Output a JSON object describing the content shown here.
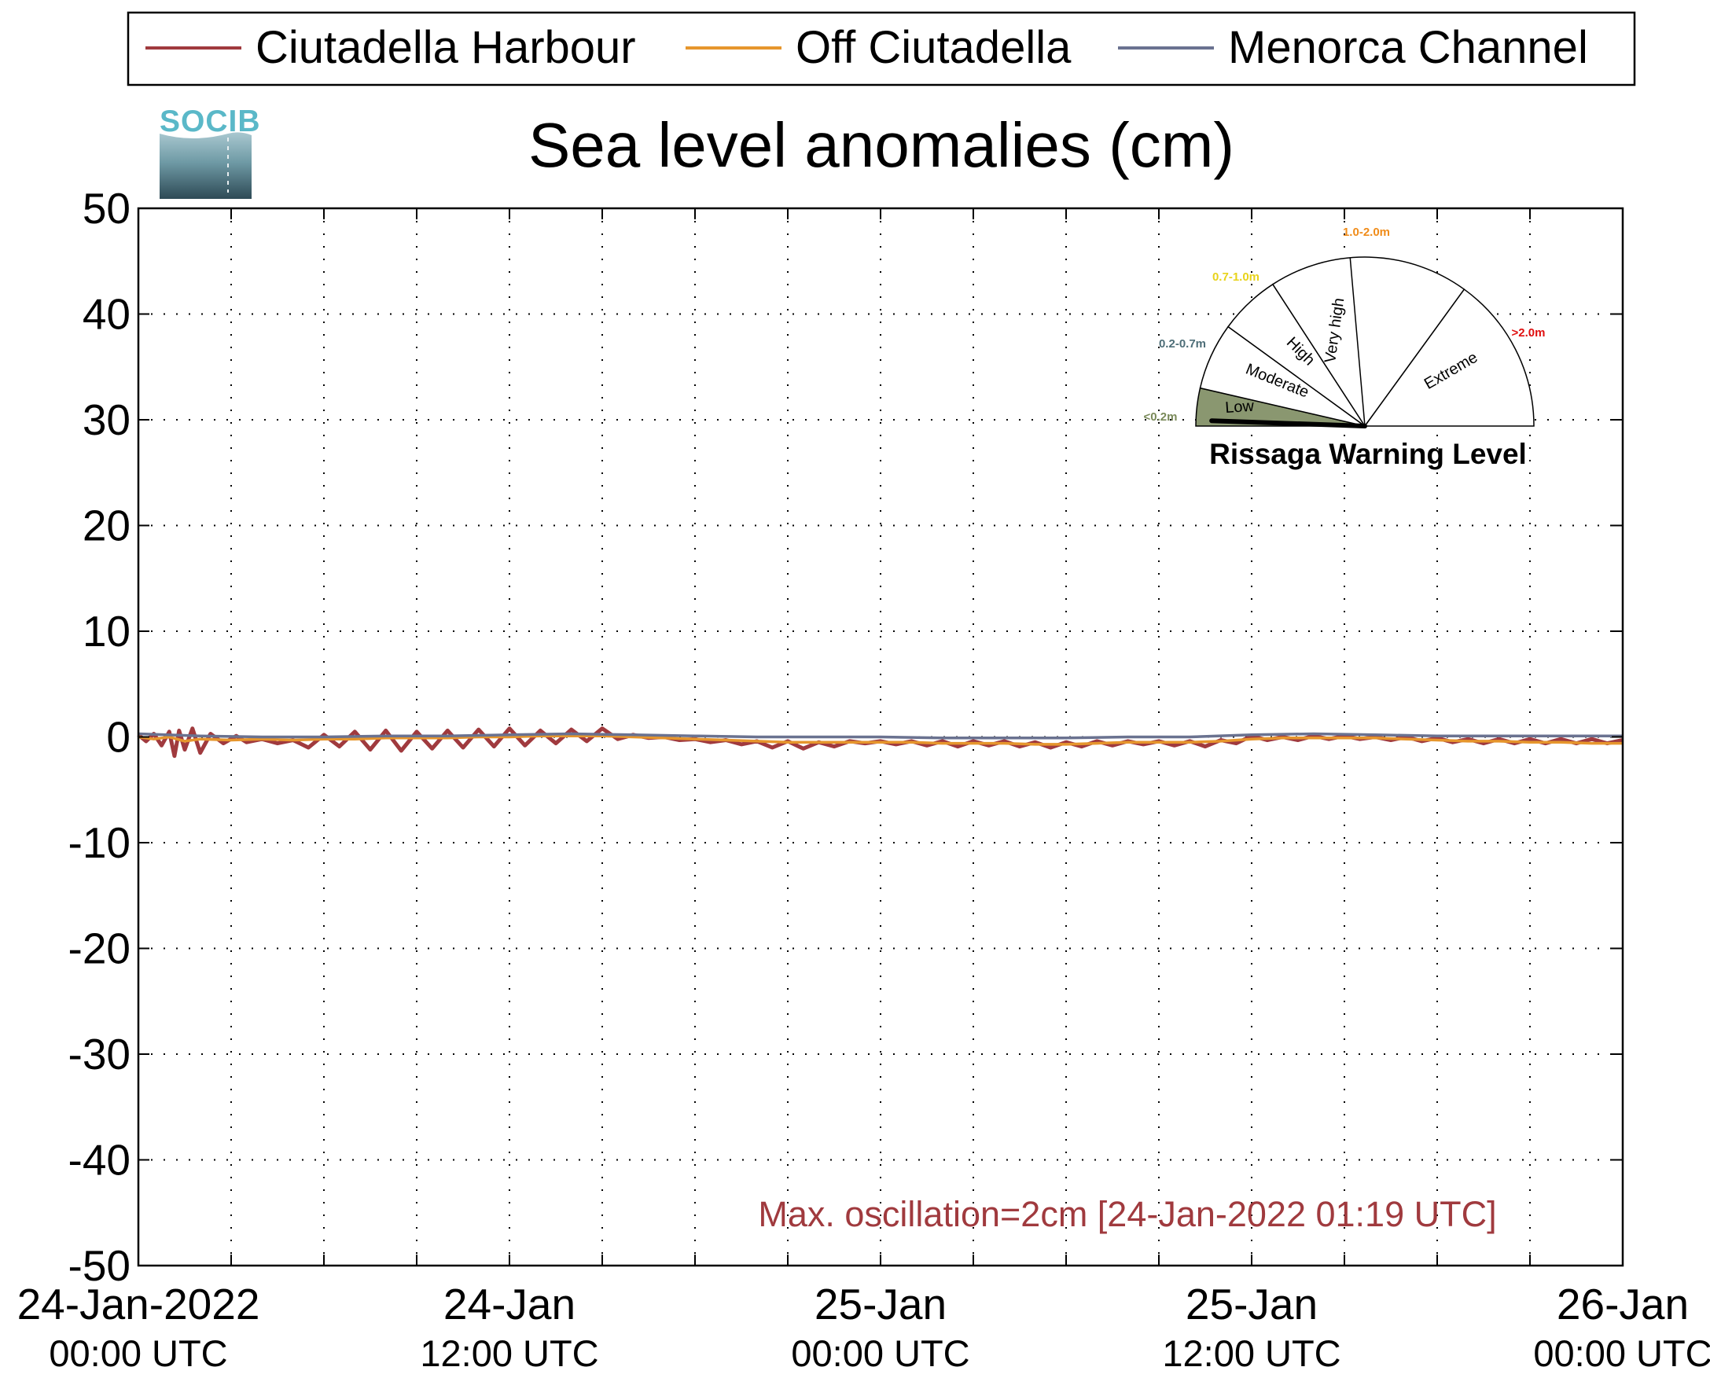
{
  "chart_data": {
    "type": "line",
    "title": "Sea level anomalies (cm)",
    "ylabel": "",
    "xlabel": "",
    "ylim": [
      -50,
      50
    ],
    "yticks": [
      50,
      40,
      30,
      20,
      10,
      0,
      -10,
      -20,
      -30,
      -40,
      -50
    ],
    "xlim": [
      "2022-01-24T00:00Z",
      "2022-01-26T00:00Z"
    ],
    "xtick_labels": [
      {
        "date": "2022-01-24T00:00Z",
        "line1": "24-Jan-2022",
        "line2": "00:00 UTC"
      },
      {
        "date": "2022-01-24T12:00Z",
        "line1": "24-Jan",
        "line2": "12:00 UTC"
      },
      {
        "date": "2022-01-25T00:00Z",
        "line1": "25-Jan",
        "line2": "00:00 UTC"
      },
      {
        "date": "2022-01-25T12:00Z",
        "line1": "25-Jan",
        "line2": "12:00 UTC"
      },
      {
        "date": "2022-01-26T00:00Z",
        "line1": "26-Jan",
        "line2": "00:00 UTC"
      }
    ],
    "grid": true,
    "legend_position": "top",
    "series": [
      {
        "name": "Ciutadella Harbour",
        "color": "#a03a3e",
        "points": [
          [
            "2022-01-24T00:00Z",
            0.2
          ],
          [
            "2022-01-24T00:15Z",
            -0.4
          ],
          [
            "2022-01-24T00:30Z",
            0.3
          ],
          [
            "2022-01-24T00:45Z",
            -0.8
          ],
          [
            "2022-01-24T01:00Z",
            0.5
          ],
          [
            "2022-01-24T01:10Z",
            -1.8
          ],
          [
            "2022-01-24T01:19Z",
            0.6
          ],
          [
            "2022-01-24T01:30Z",
            -1.2
          ],
          [
            "2022-01-24T01:45Z",
            0.8
          ],
          [
            "2022-01-24T02:00Z",
            -1.5
          ],
          [
            "2022-01-24T02:20Z",
            0.3
          ],
          [
            "2022-01-24T02:45Z",
            -0.6
          ],
          [
            "2022-01-24T03:10Z",
            0.1
          ],
          [
            "2022-01-24T03:30Z",
            -0.5
          ],
          [
            "2022-01-24T04:00Z",
            -0.2
          ],
          [
            "2022-01-24T04:30Z",
            -0.6
          ],
          [
            "2022-01-24T05:00Z",
            -0.3
          ],
          [
            "2022-01-24T05:30Z",
            -1.0
          ],
          [
            "2022-01-24T06:00Z",
            0.2
          ],
          [
            "2022-01-24T06:30Z",
            -0.9
          ],
          [
            "2022-01-24T07:00Z",
            0.5
          ],
          [
            "2022-01-24T07:30Z",
            -1.2
          ],
          [
            "2022-01-24T08:00Z",
            0.6
          ],
          [
            "2022-01-24T08:30Z",
            -1.3
          ],
          [
            "2022-01-24T09:00Z",
            0.5
          ],
          [
            "2022-01-24T09:30Z",
            -1.1
          ],
          [
            "2022-01-24T10:00Z",
            0.6
          ],
          [
            "2022-01-24T10:30Z",
            -1.0
          ],
          [
            "2022-01-24T11:00Z",
            0.7
          ],
          [
            "2022-01-24T11:30Z",
            -0.9
          ],
          [
            "2022-01-24T12:00Z",
            0.8
          ],
          [
            "2022-01-24T12:30Z",
            -0.8
          ],
          [
            "2022-01-24T13:00Z",
            0.6
          ],
          [
            "2022-01-24T13:30Z",
            -0.6
          ],
          [
            "2022-01-24T14:00Z",
            0.7
          ],
          [
            "2022-01-24T14:30Z",
            -0.4
          ],
          [
            "2022-01-24T15:00Z",
            0.8
          ],
          [
            "2022-01-24T15:30Z",
            -0.2
          ],
          [
            "2022-01-24T16:00Z",
            0.2
          ],
          [
            "2022-01-24T16:30Z",
            -0.1
          ],
          [
            "2022-01-24T17:00Z",
            0.0
          ],
          [
            "2022-01-24T17:30Z",
            -0.3
          ],
          [
            "2022-01-24T18:00Z",
            -0.2
          ],
          [
            "2022-01-24T18:30Z",
            -0.5
          ],
          [
            "2022-01-24T19:00Z",
            -0.3
          ],
          [
            "2022-01-24T19:30Z",
            -0.7
          ],
          [
            "2022-01-24T20:00Z",
            -0.4
          ],
          [
            "2022-01-24T20:30Z",
            -1.0
          ],
          [
            "2022-01-24T21:00Z",
            -0.4
          ],
          [
            "2022-01-24T21:30Z",
            -1.1
          ],
          [
            "2022-01-24T22:00Z",
            -0.5
          ],
          [
            "2022-01-24T22:30Z",
            -0.9
          ],
          [
            "2022-01-24T23:00Z",
            -0.4
          ],
          [
            "2022-01-24T23:30Z",
            -0.6
          ],
          [
            "2022-01-25T00:00Z",
            -0.4
          ],
          [
            "2022-01-25T00:30Z",
            -0.7
          ],
          [
            "2022-01-25T01:00Z",
            -0.4
          ],
          [
            "2022-01-25T01:30Z",
            -0.8
          ],
          [
            "2022-01-25T02:00Z",
            -0.4
          ],
          [
            "2022-01-25T02:30Z",
            -0.9
          ],
          [
            "2022-01-25T03:00Z",
            -0.4
          ],
          [
            "2022-01-25T03:30Z",
            -0.8
          ],
          [
            "2022-01-25T04:00Z",
            -0.4
          ],
          [
            "2022-01-25T04:30Z",
            -0.9
          ],
          [
            "2022-01-25T05:00Z",
            -0.5
          ],
          [
            "2022-01-25T05:30Z",
            -1.0
          ],
          [
            "2022-01-25T06:00Z",
            -0.5
          ],
          [
            "2022-01-25T06:30Z",
            -0.9
          ],
          [
            "2022-01-25T07:00Z",
            -0.4
          ],
          [
            "2022-01-25T07:30Z",
            -0.8
          ],
          [
            "2022-01-25T08:00Z",
            -0.4
          ],
          [
            "2022-01-25T08:30Z",
            -0.7
          ],
          [
            "2022-01-25T09:00Z",
            -0.4
          ],
          [
            "2022-01-25T09:30Z",
            -0.8
          ],
          [
            "2022-01-25T10:00Z",
            -0.4
          ],
          [
            "2022-01-25T10:30Z",
            -0.9
          ],
          [
            "2022-01-25T11:00Z",
            -0.3
          ],
          [
            "2022-01-25T11:30Z",
            -0.6
          ],
          [
            "2022-01-25T12:00Z",
            0.1
          ],
          [
            "2022-01-25T12:30Z",
            -0.3
          ],
          [
            "2022-01-25T13:00Z",
            0.0
          ],
          [
            "2022-01-25T13:30Z",
            -0.3
          ],
          [
            "2022-01-25T14:00Z",
            0.1
          ],
          [
            "2022-01-25T14:30Z",
            -0.2
          ],
          [
            "2022-01-25T15:00Z",
            0.1
          ],
          [
            "2022-01-25T15:30Z",
            -0.2
          ],
          [
            "2022-01-25T16:00Z",
            0.0
          ],
          [
            "2022-01-25T16:30Z",
            -0.3
          ],
          [
            "2022-01-25T17:00Z",
            0.0
          ],
          [
            "2022-01-25T17:30Z",
            -0.4
          ],
          [
            "2022-01-25T18:00Z",
            -0.1
          ],
          [
            "2022-01-25T18:30Z",
            -0.5
          ],
          [
            "2022-01-25T19:00Z",
            -0.2
          ],
          [
            "2022-01-25T19:30Z",
            -0.6
          ],
          [
            "2022-01-25T20:00Z",
            -0.2
          ],
          [
            "2022-01-25T20:30Z",
            -0.6
          ],
          [
            "2022-01-25T21:00Z",
            -0.2
          ],
          [
            "2022-01-25T21:30Z",
            -0.6
          ],
          [
            "2022-01-25T22:00Z",
            -0.2
          ],
          [
            "2022-01-25T22:30Z",
            -0.6
          ],
          [
            "2022-01-25T23:00Z",
            -0.2
          ],
          [
            "2022-01-25T23:30Z",
            -0.6
          ],
          [
            "2022-01-26T00:00Z",
            -0.3
          ]
        ]
      },
      {
        "name": "Off Ciutadella",
        "color": "#e6962d",
        "points": [
          [
            "2022-01-24T00:00Z",
            0.0
          ],
          [
            "2022-01-24T00:30Z",
            -0.2
          ],
          [
            "2022-01-24T01:00Z",
            0.0
          ],
          [
            "2022-01-24T01:30Z",
            -0.4
          ],
          [
            "2022-01-24T02:00Z",
            -0.2
          ],
          [
            "2022-01-24T03:00Z",
            -0.3
          ],
          [
            "2022-01-24T04:00Z",
            -0.2
          ],
          [
            "2022-01-24T05:00Z",
            -0.3
          ],
          [
            "2022-01-24T06:00Z",
            -0.2
          ],
          [
            "2022-01-24T07:00Z",
            -0.2
          ],
          [
            "2022-01-24T08:00Z",
            -0.1
          ],
          [
            "2022-01-24T09:00Z",
            -0.1
          ],
          [
            "2022-01-24T10:00Z",
            -0.1
          ],
          [
            "2022-01-24T11:00Z",
            0.0
          ],
          [
            "2022-01-24T12:00Z",
            0.0
          ],
          [
            "2022-01-24T13:00Z",
            0.1
          ],
          [
            "2022-01-24T14:00Z",
            0.1
          ],
          [
            "2022-01-24T15:00Z",
            0.1
          ],
          [
            "2022-01-24T16:00Z",
            0.0
          ],
          [
            "2022-01-24T17:00Z",
            -0.1
          ],
          [
            "2022-01-24T18:00Z",
            -0.2
          ],
          [
            "2022-01-24T19:00Z",
            -0.3
          ],
          [
            "2022-01-24T20:00Z",
            -0.4
          ],
          [
            "2022-01-24T21:00Z",
            -0.5
          ],
          [
            "2022-01-24T22:00Z",
            -0.5
          ],
          [
            "2022-01-24T23:00Z",
            -0.5
          ],
          [
            "2022-01-25T00:00Z",
            -0.5
          ],
          [
            "2022-01-25T01:00Z",
            -0.5
          ],
          [
            "2022-01-25T02:00Z",
            -0.6
          ],
          [
            "2022-01-25T03:00Z",
            -0.6
          ],
          [
            "2022-01-25T04:00Z",
            -0.6
          ],
          [
            "2022-01-25T05:00Z",
            -0.7
          ],
          [
            "2022-01-25T06:00Z",
            -0.7
          ],
          [
            "2022-01-25T07:00Z",
            -0.6
          ],
          [
            "2022-01-25T08:00Z",
            -0.5
          ],
          [
            "2022-01-25T09:00Z",
            -0.5
          ],
          [
            "2022-01-25T10:00Z",
            -0.5
          ],
          [
            "2022-01-25T11:00Z",
            -0.4
          ],
          [
            "2022-01-25T12:00Z",
            -0.2
          ],
          [
            "2022-01-25T13:00Z",
            -0.1
          ],
          [
            "2022-01-25T14:00Z",
            -0.1
          ],
          [
            "2022-01-25T15:00Z",
            -0.1
          ],
          [
            "2022-01-25T16:00Z",
            -0.1
          ],
          [
            "2022-01-25T17:00Z",
            -0.2
          ],
          [
            "2022-01-25T18:00Z",
            -0.3
          ],
          [
            "2022-01-25T19:00Z",
            -0.4
          ],
          [
            "2022-01-25T20:00Z",
            -0.4
          ],
          [
            "2022-01-25T21:00Z",
            -0.5
          ],
          [
            "2022-01-25T22:00Z",
            -0.5
          ],
          [
            "2022-01-25T23:00Z",
            -0.6
          ],
          [
            "2022-01-26T00:00Z",
            -0.6
          ]
        ]
      },
      {
        "name": "Menorca Channel",
        "color": "#6a7290",
        "points": [
          [
            "2022-01-24T00:00Z",
            0.3
          ],
          [
            "2022-01-24T02:00Z",
            0.1
          ],
          [
            "2022-01-24T04:00Z",
            0.0
          ],
          [
            "2022-01-24T06:00Z",
            0.0
          ],
          [
            "2022-01-24T08:00Z",
            0.1
          ],
          [
            "2022-01-24T10:00Z",
            0.1
          ],
          [
            "2022-01-24T12:00Z",
            0.2
          ],
          [
            "2022-01-24T14:00Z",
            0.3
          ],
          [
            "2022-01-24T16:00Z",
            0.2
          ],
          [
            "2022-01-24T18:00Z",
            0.1
          ],
          [
            "2022-01-24T20:00Z",
            0.0
          ],
          [
            "2022-01-24T22:00Z",
            0.0
          ],
          [
            "2022-01-25T00:00Z",
            0.0
          ],
          [
            "2022-01-25T02:00Z",
            -0.1
          ],
          [
            "2022-01-25T04:00Z",
            -0.1
          ],
          [
            "2022-01-25T06:00Z",
            -0.1
          ],
          [
            "2022-01-25T08:00Z",
            0.0
          ],
          [
            "2022-01-25T10:00Z",
            0.0
          ],
          [
            "2022-01-25T12:00Z",
            0.2
          ],
          [
            "2022-01-25T14:00Z",
            0.3
          ],
          [
            "2022-01-25T16:00Z",
            0.2
          ],
          [
            "2022-01-25T18:00Z",
            0.1
          ],
          [
            "2022-01-25T20:00Z",
            0.1
          ],
          [
            "2022-01-25T22:00Z",
            0.1
          ],
          [
            "2022-01-26T00:00Z",
            0.1
          ]
        ]
      }
    ],
    "annotation": {
      "text": "Max. oscillation=2cm [24-Jan-2022 01:19 UTC]",
      "color": "#a03a3e"
    },
    "logo_text": "SOCIB",
    "gauge": {
      "title": "Rissaga Warning Level",
      "current_level": "Low",
      "needle_value_m": 0.02,
      "segments": [
        {
          "label": "Low",
          "range": "<0.2m",
          "range_color": "#7a8a5a",
          "fill": "#8a9770"
        },
        {
          "label": "Moderate",
          "range": "0.2-0.7m",
          "range_color": "#4e6e78",
          "fill": "#ffffff"
        },
        {
          "label": "High",
          "range": "0.7-1.0m",
          "range_color": "#e8d31a",
          "fill": "#ffffff"
        },
        {
          "label": "Very high",
          "range": "1.0-2.0m",
          "range_color": "#f08c1a",
          "fill": "#ffffff"
        },
        {
          "label": "Extreme",
          "range": ">2.0m",
          "range_color": "#e01010",
          "fill": "#ffffff"
        }
      ]
    }
  }
}
